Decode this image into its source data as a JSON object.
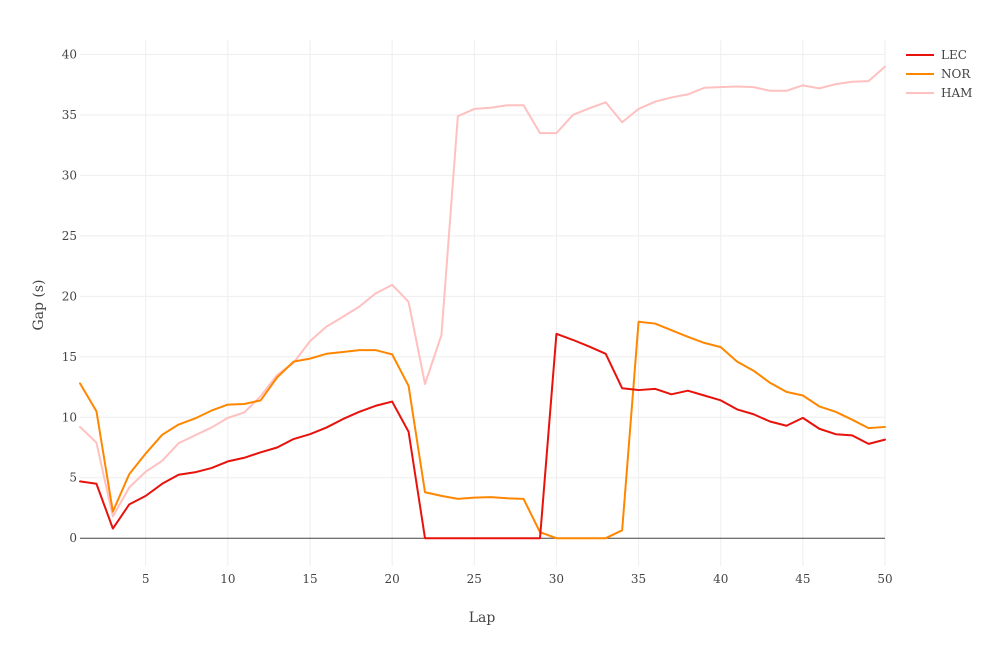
{
  "chart_data": {
    "type": "line",
    "title": "",
    "xlabel": "Lap",
    "ylabel": "Gap (s)",
    "xlim": [
      1,
      50
    ],
    "ylim": [
      -2.3,
      41.2
    ],
    "x_ticks": [
      5,
      10,
      15,
      20,
      25,
      30,
      35,
      40,
      45,
      50
    ],
    "y_ticks": [
      0,
      5,
      10,
      15,
      20,
      25,
      30,
      35,
      40
    ],
    "grid": true,
    "legend_position": "top-right",
    "x": [
      1,
      2,
      3,
      4,
      5,
      6,
      7,
      8,
      9,
      10,
      11,
      12,
      13,
      14,
      15,
      16,
      17,
      18,
      19,
      20,
      21,
      22,
      23,
      24,
      25,
      26,
      27,
      28,
      29,
      30,
      31,
      32,
      33,
      34,
      35,
      36,
      37,
      38,
      39,
      40,
      41,
      42,
      43,
      44,
      45,
      46,
      47,
      48,
      49,
      50
    ],
    "series": [
      {
        "name": "LEC",
        "color": "#e8120c",
        "values": [
          4.7,
          4.5,
          0.8,
          2.8,
          3.5,
          4.5,
          5.25,
          5.45,
          5.8,
          6.35,
          6.65,
          7.1,
          7.5,
          8.2,
          8.6,
          9.15,
          9.85,
          10.45,
          10.95,
          11.3,
          8.8,
          0.0,
          0.0,
          0.0,
          0.0,
          0.0,
          0.0,
          0.0,
          0.0,
          16.9,
          16.4,
          15.85,
          15.25,
          12.4,
          12.25,
          12.35,
          11.9,
          12.2,
          11.8,
          11.4,
          10.65,
          10.25,
          9.65,
          9.3,
          9.95,
          9.05,
          8.6,
          8.5,
          7.8,
          8.15
        ]
      },
      {
        "name": "NOR",
        "color": "#ff8700",
        "values": [
          12.8,
          10.5,
          2.2,
          5.3,
          7.0,
          8.55,
          9.4,
          9.9,
          10.55,
          11.05,
          11.1,
          11.4,
          13.3,
          14.6,
          14.85,
          15.25,
          15.4,
          15.55,
          15.55,
          15.2,
          12.6,
          3.8,
          3.5,
          3.25,
          3.35,
          3.4,
          3.3,
          3.25,
          0.5,
          0.0,
          0.0,
          0.0,
          0.0,
          0.65,
          17.9,
          17.75,
          17.2,
          16.65,
          16.15,
          15.8,
          14.6,
          13.85,
          12.85,
          12.1,
          11.8,
          10.9,
          10.45,
          9.8,
          9.1,
          9.2
        ]
      },
      {
        "name": "HAM",
        "color": "#ffc0c0",
        "values": [
          9.2,
          7.9,
          1.8,
          4.2,
          5.5,
          6.4,
          7.85,
          8.5,
          9.15,
          9.95,
          10.4,
          11.75,
          13.5,
          14.5,
          16.3,
          17.5,
          18.3,
          19.15,
          20.25,
          20.95,
          19.55,
          12.75,
          16.8,
          34.9,
          35.5,
          35.6,
          35.8,
          35.8,
          33.5,
          33.5,
          35.0,
          35.55,
          36.05,
          34.4,
          35.5,
          36.1,
          36.45,
          36.7,
          37.25,
          37.3,
          37.35,
          37.3,
          37.0,
          37.0,
          37.45,
          37.2,
          37.55,
          37.75,
          37.8,
          39.0
        ]
      }
    ]
  }
}
